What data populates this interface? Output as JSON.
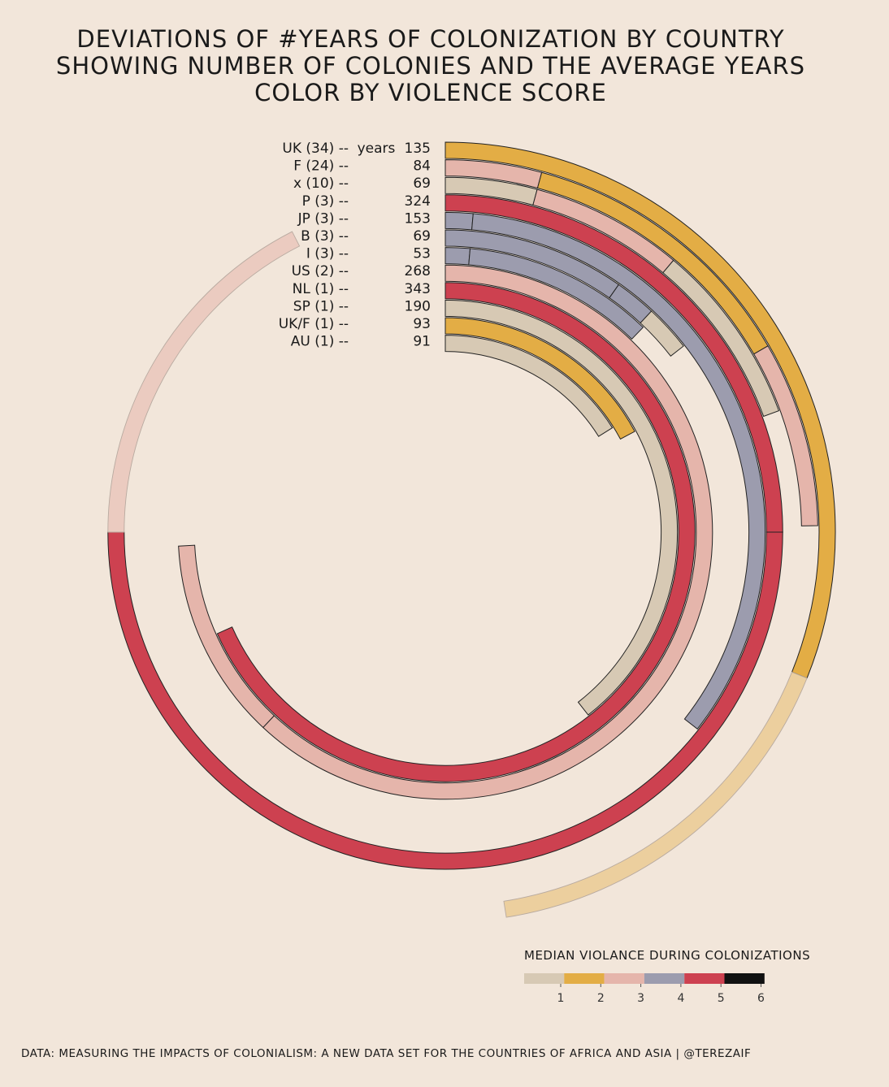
{
  "title": {
    "line1": "DEVIATIONS OF #YEARS OF COLONIZATION BY COUNTRY",
    "line2": "SHOWING NUMBER OF COLONIES AND THE AVERAGE YEARS",
    "line3": "COLOR BY VIOLENCE SCORE"
  },
  "footer": "DATA: MEASURING THE IMPACTS OF COLONIALISM: A NEW DATA SET FOR THE COUNTRIES OF AFRICA AND ASIA | @TEREZAIF",
  "chart_data": {
    "type": "radial-bar",
    "years_label": "years",
    "rows": [
      {
        "label": "UK (34) --",
        "years": 135,
        "avg_deg": 112,
        "segments": [
          {
            "from": 0,
            "to": 112,
            "score": 2
          },
          {
            "from": 112,
            "to": 171,
            "score": 2,
            "faded": true
          }
        ]
      },
      {
        "label": "F (24) --",
        "years": 84,
        "avg_deg": 64,
        "segments": [
          {
            "from": 0,
            "to": 15,
            "score": 3
          },
          {
            "from": 15,
            "to": 60,
            "score": 2
          },
          {
            "from": 60,
            "to": 89,
            "score": 3
          }
        ]
      },
      {
        "label": "x (10) --",
        "years": 69,
        "avg_deg": 52,
        "segments": [
          {
            "from": 0,
            "to": 15,
            "score": 1
          },
          {
            "from": 15,
            "to": 40,
            "score": 3
          },
          {
            "from": 40,
            "to": 70,
            "score": 1
          }
        ]
      },
      {
        "label": "P (3) --",
        "years": 324,
        "avg_deg": 270,
        "segments": [
          {
            "from": 0,
            "to": 90,
            "score": 5
          },
          {
            "from": 90,
            "to": 270,
            "score": 5
          },
          {
            "from": 270,
            "to": 333,
            "score": 3
          }
        ]
      },
      {
        "label": "JP (3) --",
        "years": 153,
        "avg_deg": 128,
        "segments": [
          {
            "from": 0,
            "to": 5,
            "score": 4
          },
          {
            "from": 5,
            "to": 128,
            "score": 4
          }
        ]
      },
      {
        "label": "B (3) --",
        "years": 69,
        "avg_deg": 52,
        "segments": [
          {
            "from": 0,
            "to": 35,
            "score": 4
          },
          {
            "from": 35,
            "to": 43,
            "score": 4
          },
          {
            "from": 43,
            "to": 52,
            "score": 1
          }
        ]
      },
      {
        "label": "I (3) --",
        "years": 53,
        "avg_deg": 44,
        "segments": [
          {
            "from": 0,
            "to": 5,
            "score": 4
          },
          {
            "from": 5,
            "to": 44,
            "score": 4
          }
        ]
      },
      {
        "label": "US (2) --",
        "years": 268,
        "avg_deg": 224,
        "segments": [
          {
            "from": 0,
            "to": 223,
            "score": 3
          },
          {
            "from": 223,
            "to": 267,
            "score": 3
          }
        ]
      },
      {
        "label": "NL (1) --",
        "years": 343,
        "avg_deg": 246,
        "segments": [
          {
            "from": 0,
            "to": 246,
            "score": 5
          }
        ]
      },
      {
        "label": "SP (1) --",
        "years": 190,
        "avg_deg": 142,
        "segments": [
          {
            "from": 0,
            "to": 142,
            "score": 1
          }
        ]
      },
      {
        "label": "UK/F (1) --",
        "years": 93,
        "avg_deg": 62,
        "segments": [
          {
            "from": 0,
            "to": 62,
            "score": 2
          }
        ]
      },
      {
        "label": "AU (1) --",
        "years": 91,
        "avg_deg": 58,
        "segments": [
          {
            "from": 0,
            "to": 58,
            "score": 1
          }
        ]
      }
    ],
    "legend": {
      "title": "MEDIAN VIOLANCE DURING COLONIZATIONS",
      "ticks": [
        "1",
        "2",
        "3",
        "4",
        "5",
        "6"
      ],
      "colors": [
        "#d7c9b4",
        "#e3ad45",
        "#e5b5ab",
        "#9c9cae",
        "#cd4150",
        "#111111"
      ]
    }
  }
}
